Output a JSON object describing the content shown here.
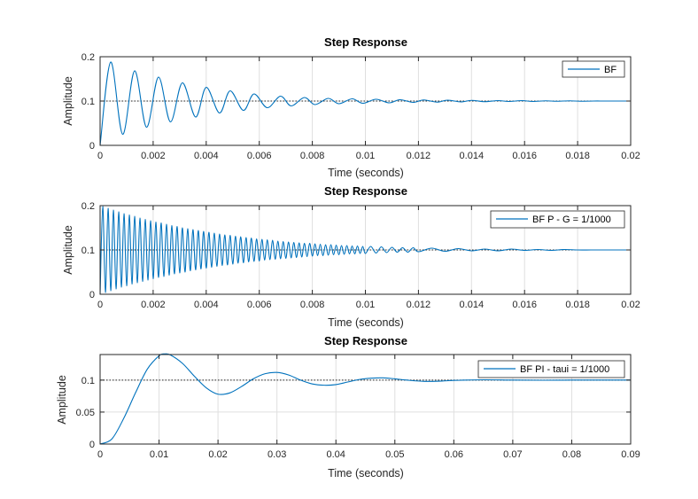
{
  "colors": {
    "series": "#0072BD",
    "axis": "#262626",
    "grid": "#dfdfdf",
    "reference": "#262626",
    "background": "#ffffff"
  },
  "chart_data": [
    {
      "type": "line",
      "title": "Step Response",
      "xlabel": "Time (seconds)",
      "ylabel": "Amplitude",
      "xlim": [
        0,
        0.02
      ],
      "ylim": [
        0,
        0.2
      ],
      "xticks": [
        0,
        0.002,
        0.004,
        0.006,
        0.008,
        0.01,
        0.012,
        0.014,
        0.016,
        0.018,
        0.02
      ],
      "xtick_labels": [
        "0",
        "0.002",
        "0.004",
        "0.006",
        "0.008",
        "0.01",
        "0.012",
        "0.014",
        "0.016",
        "0.018",
        "0.02"
      ],
      "yticks": [
        0,
        0.1,
        0.2
      ],
      "ytick_labels": [
        "0",
        "0.1",
        "0.2"
      ],
      "grid": true,
      "legend_position": "top-right",
      "reference_line": 0.1,
      "series": [
        {
          "name": "BF",
          "x": [
            0,
            0.0004,
            0.00085,
            0.0013,
            0.00175,
            0.0022,
            0.00265,
            0.0031,
            0.0036,
            0.004,
            0.0045,
            0.0049,
            0.0054,
            0.0058,
            0.0063,
            0.0068,
            0.0072,
            0.0077,
            0.0081,
            0.0086,
            0.009,
            0.0095,
            0.0099,
            0.0104,
            0.0109,
            0.0113,
            0.0118,
            0.0122,
            0.0127,
            0.0131,
            0.0136,
            0.014,
            0.0145,
            0.015,
            0.0154,
            0.0159,
            0.0163,
            0.0168,
            0.0172,
            0.0177,
            0.0181,
            0.0186,
            0.019,
            0.0195,
            0.02
          ],
          "y": [
            0,
            0.188,
            0.025,
            0.168,
            0.041,
            0.154,
            0.053,
            0.141,
            0.064,
            0.131,
            0.073,
            0.123,
            0.079,
            0.116,
            0.085,
            0.111,
            0.089,
            0.108,
            0.092,
            0.106,
            0.094,
            0.105,
            0.095,
            0.104,
            0.096,
            0.103,
            0.097,
            0.1025,
            0.0975,
            0.102,
            0.098,
            0.1015,
            0.0985,
            0.101,
            0.099,
            0.101,
            0.099,
            0.1005,
            0.0995,
            0.1005,
            0.0995,
            0.1,
            0.1,
            0.1,
            0.1
          ]
        }
      ]
    },
    {
      "type": "line",
      "title": "Step Response",
      "xlabel": "Time (seconds)",
      "ylabel": "Amplitude",
      "xlim": [
        0,
        0.02
      ],
      "ylim": [
        0,
        0.2
      ],
      "xticks": [
        0,
        0.002,
        0.004,
        0.006,
        0.008,
        0.01,
        0.012,
        0.014,
        0.016,
        0.018,
        0.02
      ],
      "xtick_labels": [
        "0",
        "0.002",
        "0.004",
        "0.006",
        "0.008",
        "0.01",
        "0.012",
        "0.014",
        "0.016",
        "0.018",
        "0.02"
      ],
      "yticks": [
        0,
        0.1,
        0.2
      ],
      "ytick_labels": [
        "0",
        "0.1",
        "0.2"
      ],
      "grid": true,
      "legend_position": "top-right",
      "reference_line": 0.1,
      "series": [
        {
          "name": "BF P - G = 1/1000",
          "x": [
            0,
            0.0001,
            0.0002,
            0.0003,
            0.0004,
            0.0005,
            0.0006,
            0.0007,
            0.0008,
            0.0009,
            0.001,
            0.0011,
            0.0012,
            0.0013,
            0.0014,
            0.0015,
            0.0016,
            0.0017,
            0.0018,
            0.0019,
            0.002,
            0.0021,
            0.0022,
            0.0023,
            0.0024,
            0.0025,
            0.0026,
            0.0027,
            0.0028,
            0.0029,
            0.003,
            0.0031,
            0.0032,
            0.0033,
            0.0034,
            0.0035,
            0.0036,
            0.0037,
            0.0038,
            0.0039,
            0.004,
            0.0041,
            0.0042,
            0.0043,
            0.0044,
            0.0045,
            0.0046,
            0.0047,
            0.0048,
            0.0049,
            0.005,
            0.0051,
            0.0052,
            0.0053,
            0.0054,
            0.0055,
            0.0056,
            0.0057,
            0.0058,
            0.0059,
            0.006,
            0.0061,
            0.0062,
            0.0063,
            0.0064,
            0.0065,
            0.0066,
            0.0067,
            0.0068,
            0.0069,
            0.007,
            0.0071,
            0.0072,
            0.0073,
            0.0074,
            0.0075,
            0.0076,
            0.0077,
            0.0078,
            0.0079,
            0.008,
            0.0081,
            0.0082,
            0.0083,
            0.0084,
            0.0085,
            0.0086,
            0.0087,
            0.0088,
            0.0089,
            0.009,
            0.0091,
            0.0092,
            0.0093,
            0.0094,
            0.0095,
            0.0096,
            0.0097,
            0.0098,
            0.0099,
            0.01,
            0.0102,
            0.0104,
            0.0106,
            0.0108,
            0.011,
            0.0112,
            0.0114,
            0.0116,
            0.0118,
            0.012,
            0.0125,
            0.013,
            0.0135,
            0.014,
            0.0145,
            0.015,
            0.0155,
            0.016,
            0.0165,
            0.017,
            0.0175,
            0.018,
            0.0185,
            0.019,
            0.0195,
            0.02
          ],
          "y": [
            0,
            0.198,
            0.004,
            0.194,
            0.008,
            0.19,
            0.012,
            0.186,
            0.016,
            0.182,
            0.019,
            0.179,
            0.023,
            0.176,
            0.026,
            0.172,
            0.029,
            0.169,
            0.032,
            0.166,
            0.035,
            0.163,
            0.038,
            0.161,
            0.04,
            0.158,
            0.043,
            0.155,
            0.046,
            0.153,
            0.048,
            0.15,
            0.05,
            0.148,
            0.053,
            0.146,
            0.055,
            0.144,
            0.057,
            0.142,
            0.059,
            0.14,
            0.061,
            0.138,
            0.063,
            0.136,
            0.065,
            0.134,
            0.066,
            0.133,
            0.068,
            0.131,
            0.07,
            0.13,
            0.071,
            0.128,
            0.073,
            0.127,
            0.074,
            0.125,
            0.075,
            0.124,
            0.077,
            0.123,
            0.078,
            0.122,
            0.079,
            0.12,
            0.08,
            0.119,
            0.081,
            0.118,
            0.082,
            0.117,
            0.083,
            0.116,
            0.084,
            0.115,
            0.085,
            0.115,
            0.086,
            0.114,
            0.087,
            0.113,
            0.087,
            0.112,
            0.088,
            0.112,
            0.089,
            0.111,
            0.089,
            0.11,
            0.09,
            0.11,
            0.091,
            0.109,
            0.091,
            0.109,
            0.092,
            0.108,
            0.092,
            0.108,
            0.093,
            0.107,
            0.094,
            0.106,
            0.095,
            0.105,
            0.095,
            0.105,
            0.096,
            0.104,
            0.097,
            0.103,
            0.098,
            0.102,
            0.098,
            0.102,
            0.099,
            0.101,
            0.099,
            0.101,
            0.1,
            0.1,
            0.1,
            0.1,
            0.1
          ]
        }
      ]
    },
    {
      "type": "line",
      "title": "Step Response",
      "xlabel": "Time (seconds)",
      "ylabel": "Amplitude",
      "xlim": [
        0,
        0.09
      ],
      "ylim": [
        0,
        0.14
      ],
      "xticks": [
        0,
        0.01,
        0.02,
        0.03,
        0.04,
        0.05,
        0.06,
        0.07,
        0.08,
        0.09
      ],
      "xtick_labels": [
        "0",
        "0.01",
        "0.02",
        "0.03",
        "0.04",
        "0.05",
        "0.06",
        "0.07",
        "0.08",
        "0.09"
      ],
      "yticks": [
        0,
        0.05,
        0.1
      ],
      "ytick_labels": [
        "0",
        "0.05",
        "0.1"
      ],
      "grid": true,
      "legend_position": "top-right",
      "reference_line": 0.1,
      "series": [
        {
          "name": "BF PI - taui = 1/1000",
          "x": [
            0,
            0.002,
            0.004,
            0.006,
            0.008,
            0.01,
            0.011,
            0.012,
            0.014,
            0.016,
            0.018,
            0.02,
            0.022,
            0.024,
            0.026,
            0.028,
            0.03,
            0.032,
            0.034,
            0.036,
            0.038,
            0.04,
            0.042,
            0.044,
            0.046,
            0.048,
            0.05,
            0.052,
            0.055,
            0.058,
            0.06,
            0.065,
            0.07,
            0.075,
            0.08,
            0.085,
            0.09
          ],
          "y": [
            0,
            0.008,
            0.04,
            0.08,
            0.117,
            0.138,
            0.141,
            0.139,
            0.126,
            0.106,
            0.088,
            0.078,
            0.08,
            0.09,
            0.102,
            0.11,
            0.112,
            0.108,
            0.1,
            0.094,
            0.092,
            0.093,
            0.097,
            0.101,
            0.103,
            0.1035,
            0.102,
            0.1,
            0.098,
            0.0985,
            0.0995,
            0.1005,
            0.1,
            0.0998,
            0.1,
            0.1,
            0.1
          ]
        }
      ]
    }
  ]
}
